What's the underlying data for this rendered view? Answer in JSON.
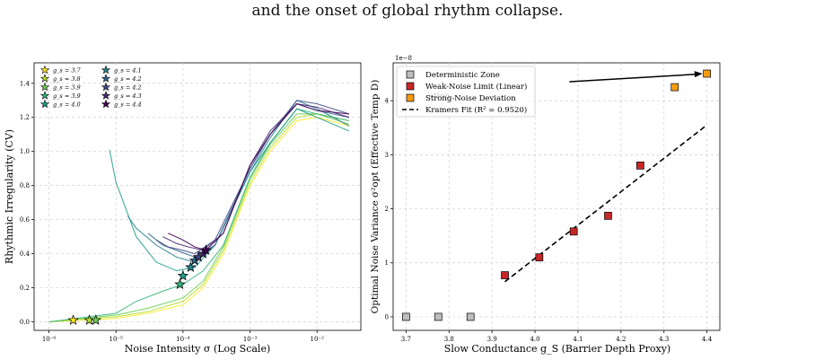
{
  "caption": "and the onset of global rhythm collapse.",
  "chart_data": [
    {
      "type": "line",
      "xlabel": "Noise Intensity σ (Log Scale)",
      "ylabel": "Rhythmic Irregularity (CV)",
      "xscale": "log",
      "xlim": [
        6e-07,
        0.045
      ],
      "ylim": [
        -0.05,
        1.52
      ],
      "xticks": [
        1e-06,
        1e-05,
        0.0001,
        0.001,
        0.01
      ],
      "xtick_labels": [
        "10⁻⁶",
        "10⁻⁵",
        "10⁻⁴",
        "10⁻³",
        "10⁻²"
      ],
      "yticks": [
        0.0,
        0.2,
        0.4,
        0.6,
        0.8,
        1.0,
        1.2,
        1.4
      ],
      "ytick_labels": [
        "0.0",
        "0.2",
        "0.4",
        "0.6",
        "0.8",
        "1.0",
        "1.2",
        "1.4"
      ],
      "grid": true,
      "legend_position": "top-left",
      "series": [
        {
          "name": "g_s = 3.7",
          "color": "#fde725",
          "star": [
            2.3e-06,
            0.01
          ],
          "x": [
            1e-06,
            1e-05,
            3e-05,
            0.0001,
            0.0002,
            0.0004,
            0.001,
            0.002,
            0.005,
            0.01,
            0.03
          ],
          "y": [
            0.0,
            0.02,
            0.05,
            0.1,
            0.2,
            0.4,
            0.8,
            1.0,
            1.18,
            1.2,
            1.15
          ]
        },
        {
          "name": "g_s = 3.8",
          "color": "#b5de2b",
          "star": [
            4e-06,
            0.01
          ],
          "x": [
            1e-06,
            1e-05,
            3e-05,
            0.0001,
            0.0002,
            0.0004,
            0.001,
            0.002,
            0.005,
            0.01,
            0.03
          ],
          "y": [
            0.0,
            0.03,
            0.06,
            0.12,
            0.22,
            0.42,
            0.82,
            1.02,
            1.2,
            1.22,
            1.18
          ]
        },
        {
          "name": "g_s = 3.9",
          "color": "#6ece58",
          "star": [
            5e-06,
            0.01
          ],
          "x": [
            1e-06,
            1e-05,
            3e-05,
            0.0001,
            0.0002,
            0.0004,
            0.001,
            0.002,
            0.005,
            0.01,
            0.03
          ],
          "y": [
            0.0,
            0.04,
            0.08,
            0.14,
            0.24,
            0.44,
            0.84,
            1.04,
            1.22,
            1.22,
            1.16
          ]
        },
        {
          "name": "g_s = 3.9",
          "color": "#35b779",
          "star": [
            9e-05,
            0.22
          ],
          "x": [
            1e-06,
            1e-05,
            2e-05,
            5e-05,
            0.0001,
            0.0002,
            0.0004,
            0.001,
            0.002,
            0.005,
            0.01,
            0.03
          ],
          "y": [
            0.0,
            0.05,
            0.12,
            0.18,
            0.22,
            0.3,
            0.45,
            0.85,
            1.05,
            1.25,
            1.22,
            1.18
          ]
        },
        {
          "name": "g_s = 4.0",
          "color": "#1f9e89",
          "star": [
            0.0001,
            0.27
          ],
          "x": [
            8e-06,
            1e-05,
            2e-05,
            4e-05,
            8e-05,
            0.00015,
            0.0003,
            0.001,
            0.002,
            0.005,
            0.01,
            0.03
          ],
          "y": [
            1.01,
            0.82,
            0.5,
            0.35,
            0.3,
            0.32,
            0.45,
            0.88,
            1.05,
            1.25,
            1.2,
            1.12
          ]
        },
        {
          "name": "g_s = 4.1",
          "color": "#26828e",
          "star": [
            0.00013,
            0.32
          ],
          "x": [
            1.5e-05,
            2e-05,
            4e-05,
            8e-05,
            0.00015,
            0.0003,
            0.001,
            0.002,
            0.005,
            0.01,
            0.03
          ],
          "y": [
            0.62,
            0.55,
            0.45,
            0.38,
            0.35,
            0.45,
            0.88,
            1.08,
            1.3,
            1.25,
            1.15
          ]
        },
        {
          "name": "g_s = 4.2",
          "color": "#31688e",
          "star": [
            0.00015,
            0.36
          ],
          "x": [
            3e-05,
            5e-05,
            8e-05,
            0.00015,
            0.0003,
            0.001,
            0.002,
            0.005,
            0.01,
            0.03
          ],
          "y": [
            0.52,
            0.45,
            0.42,
            0.38,
            0.45,
            0.9,
            1.1,
            1.28,
            1.24,
            1.2
          ]
        },
        {
          "name": "g_s = 4.2",
          "color": "#3e4989",
          "star": [
            0.00017,
            0.38
          ],
          "x": [
            4e-05,
            6e-05,
            0.0001,
            0.00015,
            0.0003,
            0.001,
            0.002,
            0.005,
            0.01,
            0.03
          ],
          "y": [
            0.48,
            0.44,
            0.42,
            0.4,
            0.48,
            0.9,
            1.1,
            1.3,
            1.28,
            1.22
          ]
        },
        {
          "name": "g_s = 4.3",
          "color": "#482878",
          "star": [
            0.0002,
            0.4
          ],
          "x": [
            5e-05,
            8e-05,
            0.00012,
            0.0002,
            0.0004,
            0.001,
            0.002,
            0.005,
            0.01,
            0.03
          ],
          "y": [
            0.5,
            0.46,
            0.44,
            0.42,
            0.52,
            0.92,
            1.12,
            1.28,
            1.26,
            1.2
          ]
        },
        {
          "name": "g_s = 4.4",
          "color": "#440154",
          "star": [
            0.00022,
            0.42
          ],
          "x": [
            6e-05,
            0.0001,
            0.00015,
            0.00022,
            0.0004,
            0.001,
            0.002,
            0.005,
            0.01,
            0.03
          ],
          "y": [
            0.52,
            0.48,
            0.44,
            0.42,
            0.52,
            0.92,
            1.1,
            1.28,
            1.24,
            1.22
          ]
        }
      ]
    },
    {
      "type": "scatter",
      "xlabel": "Slow Conductance g_S (Barrier Depth Proxy)",
      "ylabel": "Optimal Noise Variance σ²opt (Effective Temp D)",
      "offset_text": "1e−8",
      "xlim": [
        3.67,
        4.43
      ],
      "ylim": [
        -2.5e-09,
        4.7e-08
      ],
      "xticks": [
        3.7,
        3.8,
        3.9,
        4.0,
        4.1,
        4.2,
        4.3,
        4.4
      ],
      "xtick_labels": [
        "3.7",
        "3.8",
        "3.9",
        "4.0",
        "4.1",
        "4.2",
        "4.3",
        "4.4"
      ],
      "yticks": [
        0,
        1e-08,
        2e-08,
        3e-08,
        4e-08
      ],
      "ytick_labels": [
        "0",
        "1",
        "2",
        "3",
        "4"
      ],
      "grid": true,
      "legend_position": "top-left",
      "hidden_annotation_fragment": "ation",
      "series": [
        {
          "name": "Deterministic Zone",
          "color": "#bdbdbd",
          "x": [
            3.7,
            3.775,
            3.85
          ],
          "y": [
            0,
            0,
            0
          ]
        },
        {
          "name": "Weak-Noise Limit (Linear)",
          "color": "#c62828",
          "x": [
            3.93,
            4.01,
            4.09,
            4.17,
            4.245
          ],
          "y": [
            7.7e-09,
            1.1e-08,
            1.58e-08,
            1.87e-08,
            2.8e-08
          ]
        },
        {
          "name": "Strong-Noise Deviation",
          "color": "#f39c12",
          "x": [
            4.325,
            4.4
          ],
          "y": [
            4.25e-08,
            4.5e-08
          ]
        },
        {
          "name": "Kramers Fit (R² = 0.9520)",
          "color": "#000000",
          "style": "dashed",
          "x": [
            3.93,
            4.4
          ],
          "y": [
            6.5e-09,
            3.55e-08
          ]
        }
      ],
      "arrow": {
        "from": [
          4.08,
          4.35e-08
        ],
        "to": [
          4.39,
          4.5e-08
        ]
      }
    }
  ]
}
